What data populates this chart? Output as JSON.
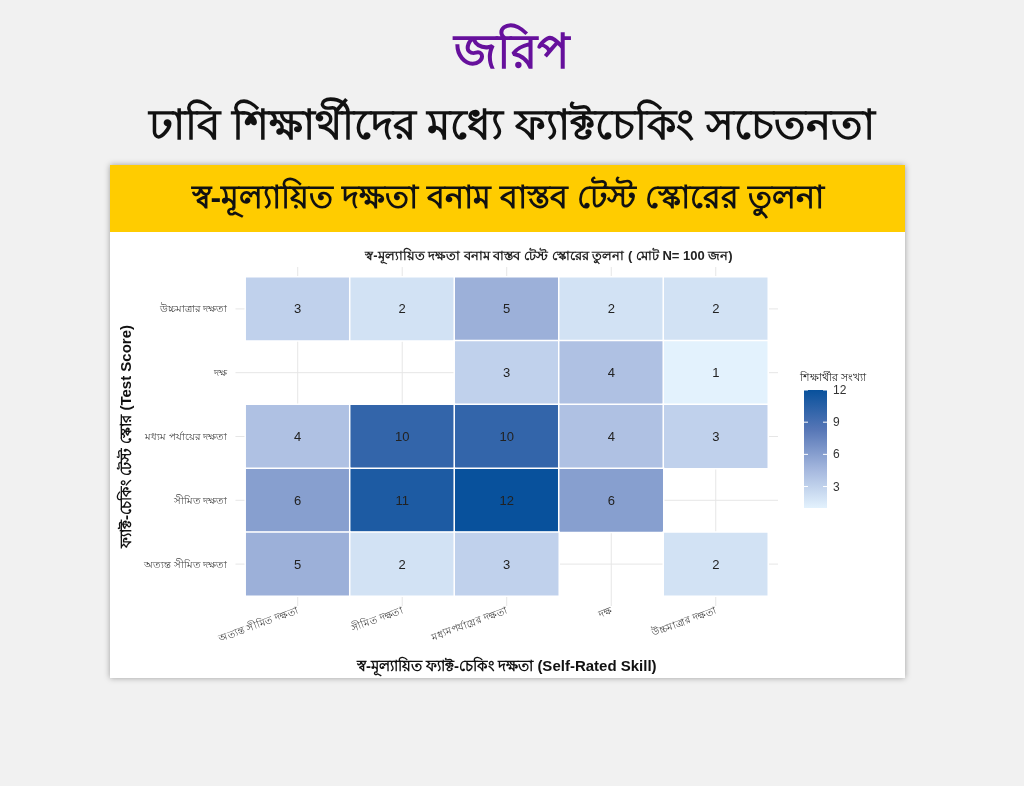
{
  "chart_data": {
    "type": "heatmap",
    "title": "জরিপ",
    "subtitle": "ঢাবি শিক্ষার্থীদের মধ্যে ফ্যাক্টচেকিং সচেতনতা",
    "annotations": [
      "স্ব-মূল্যায়িত দক্ষতা বনাম বাস্তব টেস্ট স্কোরের তুলনা",
      "স্ব-মূল্যায়িত দক্ষতা বনাম বাস্তব টেস্ট স্কোরের তুলনা ( মোট N= 100 জন)"
    ],
    "xlabel": "স্ব-মূল্যায়িত ফ্যাক্ট-চেকিং দক্ষতা (Self-Rated Skill)",
    "ylabel": "ফ্যাক্ট-চেকিং টেস্ট স্কোর (Test Score)",
    "clabel": "শিক্ষার্থীর সংখ্যা",
    "categories": [
      "অত্যন্ত সীমিত দক্ষতা",
      "সীমিত দক্ষতা",
      "মধ্যমপর্যায়ের দক্ষতা",
      "দক্ষ",
      "উচ্চমাত্রার দক্ষতা"
    ],
    "y_categories": [
      "উচ্চমাত্রার দক্ষতা",
      "দক্ষ",
      "মধ্যম পর্যায়ের দক্ষতা",
      "সীমিত দক্ষতা",
      "অত্যন্ত সীমিত দক্ষতা"
    ],
    "cells": [
      [
        3,
        2,
        5,
        2,
        2
      ],
      [
        null,
        null,
        3,
        4,
        1
      ],
      [
        4,
        10,
        10,
        4,
        3
      ],
      [
        6,
        11,
        12,
        6,
        null
      ],
      [
        5,
        2,
        3,
        null,
        2
      ]
    ],
    "clim": [
      1,
      12
    ],
    "cticks": [
      3,
      6,
      9,
      12
    ],
    "grid": true,
    "data_labels": true
  }
}
